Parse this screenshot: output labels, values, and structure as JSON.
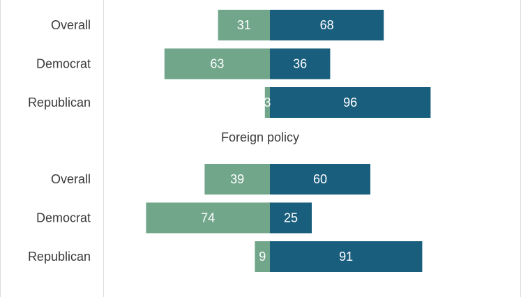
{
  "chart_data": {
    "type": "bar",
    "orientation": "horizontal-diverging",
    "colors": {
      "left": "#72a68b",
      "right": "#1a5e7e"
    },
    "panels": [
      {
        "title": "",
        "categories": [
          "Overall",
          "Democrat",
          "Republican"
        ],
        "series": [
          {
            "values": [
              31,
              63,
              3
            ]
          },
          {
            "values": [
              68,
              36,
              96
            ]
          }
        ]
      },
      {
        "title": "Foreign policy",
        "categories": [
          "Overall",
          "Democrat",
          "Republican"
        ],
        "series": [
          {
            "values": [
              39,
              74,
              9
            ]
          },
          {
            "values": [
              60,
              25,
              91
            ]
          }
        ]
      }
    ]
  }
}
